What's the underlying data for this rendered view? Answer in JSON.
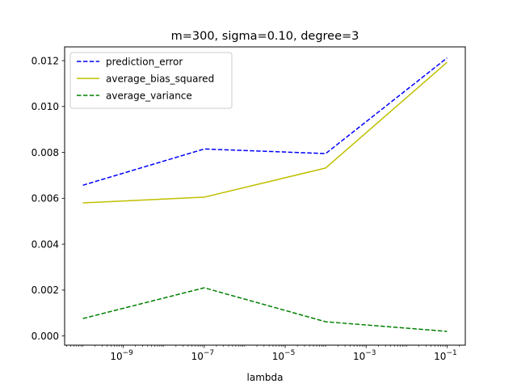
{
  "chart_data": {
    "type": "line",
    "title": "m=300, sigma=0.10, degree=3",
    "xlabel": "lambda",
    "ylabel": "",
    "x_scale": "log",
    "x": [
      1e-10,
      1e-07,
      0.0001,
      0.1
    ],
    "xlim": [
      1e-10,
      0.1
    ],
    "ylim": [
      -0.0004,
      0.0126
    ],
    "x_ticks": [
      {
        "value": 1e-09,
        "base": "10",
        "exp": "−9"
      },
      {
        "value": 1e-07,
        "base": "10",
        "exp": "−7"
      },
      {
        "value": 1e-05,
        "base": "10",
        "exp": "−5"
      },
      {
        "value": 0.001,
        "base": "10",
        "exp": "−3"
      },
      {
        "value": 0.1,
        "base": "10",
        "exp": "−1"
      }
    ],
    "y_ticks": [
      {
        "value": 0.0,
        "label": "0.000"
      },
      {
        "value": 0.002,
        "label": "0.002"
      },
      {
        "value": 0.004,
        "label": "0.004"
      },
      {
        "value": 0.006,
        "label": "0.006"
      },
      {
        "value": 0.008,
        "label": "0.008"
      },
      {
        "value": 0.01,
        "label": "0.010"
      },
      {
        "value": 0.012,
        "label": "0.012"
      }
    ],
    "grid": false,
    "legend_position": "top-left",
    "series": [
      {
        "name": "prediction_error",
        "color": "#0000ff",
        "dashed": true,
        "values": [
          0.00657,
          0.00815,
          0.00795,
          0.01212
        ]
      },
      {
        "name": "average_bias_squared",
        "color": "#bfbf00",
        "dashed": false,
        "values": [
          0.0058,
          0.00605,
          0.00732,
          0.01193
        ]
      },
      {
        "name": "average_variance",
        "color": "#008000",
        "dashed": true,
        "values": [
          0.00076,
          0.0021,
          0.00062,
          0.0002
        ]
      }
    ]
  }
}
